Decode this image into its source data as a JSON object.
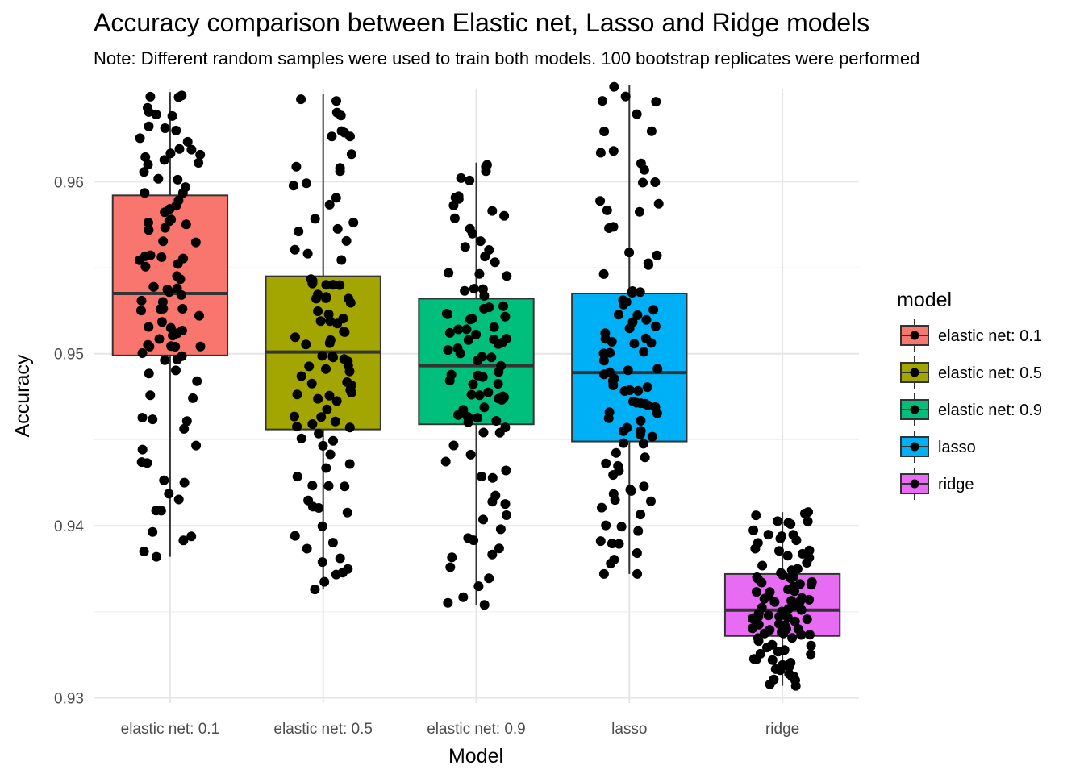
{
  "chart_data": {
    "type": "box",
    "title": "Accuracy comparison between Elastic net, Lasso and Ridge models",
    "subtitle": "Note: Different random samples were used to train both models. 100 bootstrap replicates were performed",
    "xlabel": "Model",
    "ylabel": "Accuracy",
    "ylim": [
      0.9297,
      0.9654
    ],
    "yticks": [
      0.93,
      0.94,
      0.95,
      0.96
    ],
    "ytick_labels": [
      "0.93",
      "0.94",
      "0.95",
      "0.96"
    ],
    "grid": true,
    "legend": {
      "title": "model",
      "position": "right"
    },
    "categories": [
      "elastic net: 0.1",
      "elastic net: 0.5",
      "elastic net: 0.9",
      "lasso",
      "ridge"
    ],
    "colors": [
      "#F8766D",
      "#A3A500",
      "#00BF7D",
      "#00B0F6",
      "#E76BF3"
    ],
    "series": [
      {
        "name": "elastic net: 0.1",
        "color": "#F8766D",
        "box": {
          "min": 0.9382,
          "q1": 0.9499,
          "median": 0.9535,
          "q3": 0.9592,
          "max": 0.9652
        },
        "n": 100,
        "seed": 11
      },
      {
        "name": "elastic net: 0.5",
        "color": "#A3A500",
        "box": {
          "min": 0.9363,
          "q1": 0.9456,
          "median": 0.9501,
          "q3": 0.9545,
          "max": 0.9651
        },
        "n": 100,
        "seed": 23
      },
      {
        "name": "elastic net: 0.9",
        "color": "#00BF7D",
        "box": {
          "min": 0.9354,
          "q1": 0.9459,
          "median": 0.9493,
          "q3": 0.9532,
          "max": 0.9611
        },
        "n": 100,
        "seed": 37
      },
      {
        "name": "lasso",
        "color": "#00B0F6",
        "box": {
          "min": 0.9372,
          "q1": 0.9449,
          "median": 0.9489,
          "q3": 0.9535,
          "max": 0.9656
        },
        "n": 100,
        "seed": 53
      },
      {
        "name": "ridge",
        "color": "#E76BF3",
        "box": {
          "min": 0.9307,
          "q1": 0.9336,
          "median": 0.9351,
          "q3": 0.9372,
          "max": 0.9408
        },
        "n": 100,
        "seed": 71
      }
    ]
  }
}
